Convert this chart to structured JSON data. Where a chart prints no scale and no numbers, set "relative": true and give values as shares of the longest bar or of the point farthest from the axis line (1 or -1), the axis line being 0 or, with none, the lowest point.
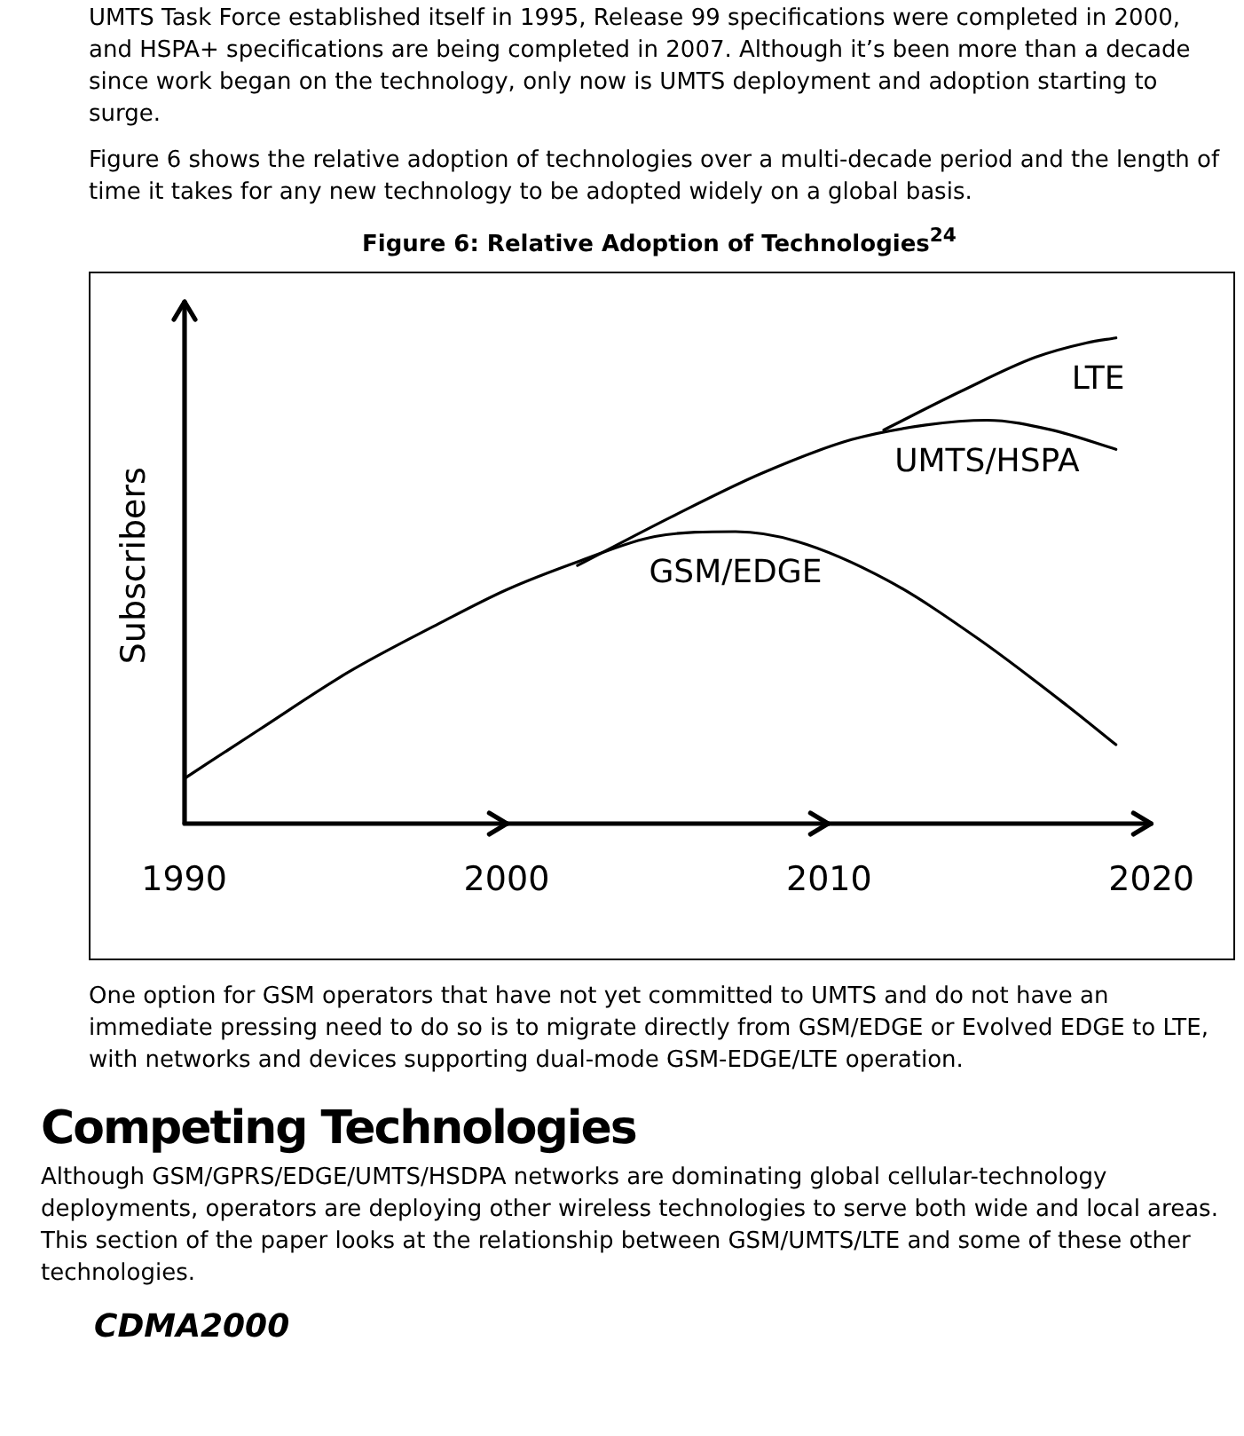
{
  "chart_data": {
    "type": "line",
    "title": "Figure 6: Relative Adoption of Technologies$^{24}$",
    "ylabel": "Subscribers",
    "relative": true,
    "xlim": [
      1990,
      2020
    ],
    "xticks": [
      1990,
      2000,
      2010,
      2020
    ],
    "grid": false,
    "legend": false,
    "marker": "none",
    "line_style": "solid",
    "series": [
      {
        "name": "GSM/EDGE",
        "color": "#000000",
        "x": [
          1990,
          1992.3,
          1995.1,
          1997.9,
          2000,
          2002.3,
          2004.6,
          2007.1,
          2009,
          2011.8,
          2014.6,
          2017.4,
          2018.9
        ],
        "values": [
          0.09,
          0.19,
          0.31,
          0.41,
          0.48,
          0.54,
          0.59,
          0.6,
          0.58,
          0.5,
          0.38,
          0.24,
          0.16
        ]
      },
      {
        "name": "UMTS/HSPA",
        "color": "#000000",
        "x": [
          2002.2,
          2005.1,
          2007.9,
          2010.7,
          2013,
          2014.9,
          2016.9,
          2018.9
        ],
        "values": [
          0.53,
          0.63,
          0.72,
          0.79,
          0.82,
          0.83,
          0.81,
          0.77
        ]
      },
      {
        "name": "LTE",
        "color": "#000000",
        "x": [
          2011.7,
          2014.1,
          2016.4,
          2018,
          2018.9
        ],
        "values": [
          0.81,
          0.89,
          0.96,
          0.99,
          1
        ]
      }
    ],
    "annotations": [
      "UMTS Task Force established itself in 1995, Release 99 specifications were completed in 2000, and HSPA+ specifications are being completed in 2007. Although it’s been more than a decade since work began on the technology, only now is UMTS deployment and adoption starting to surge.",
      "Figure 6 shows the relative adoption of technologies over a multi-decade period and the length of time it takes for any new technology to be adopted widely on a global basis.",
      "One option for GSM operators that have not yet committed to UMTS and do not have an immediate pressing need to do so is to migrate directly from GSM/EDGE or Evolved EDGE to LTE, with networks and devices supporting dual-mode GSM-EDGE/LTE operation.",
      "Competing Technologies",
      "Although GSM/GPRS/EDGE/UMTS/HSDPA networks are dominating global cellular-technology deployments, operators are deploying other wireless technologies to serve both wide and local areas. This section of the paper looks at the relationship between GSM/UMTS/LTE and some of these other technologies.",
      "CDMA2000"
    ]
  }
}
